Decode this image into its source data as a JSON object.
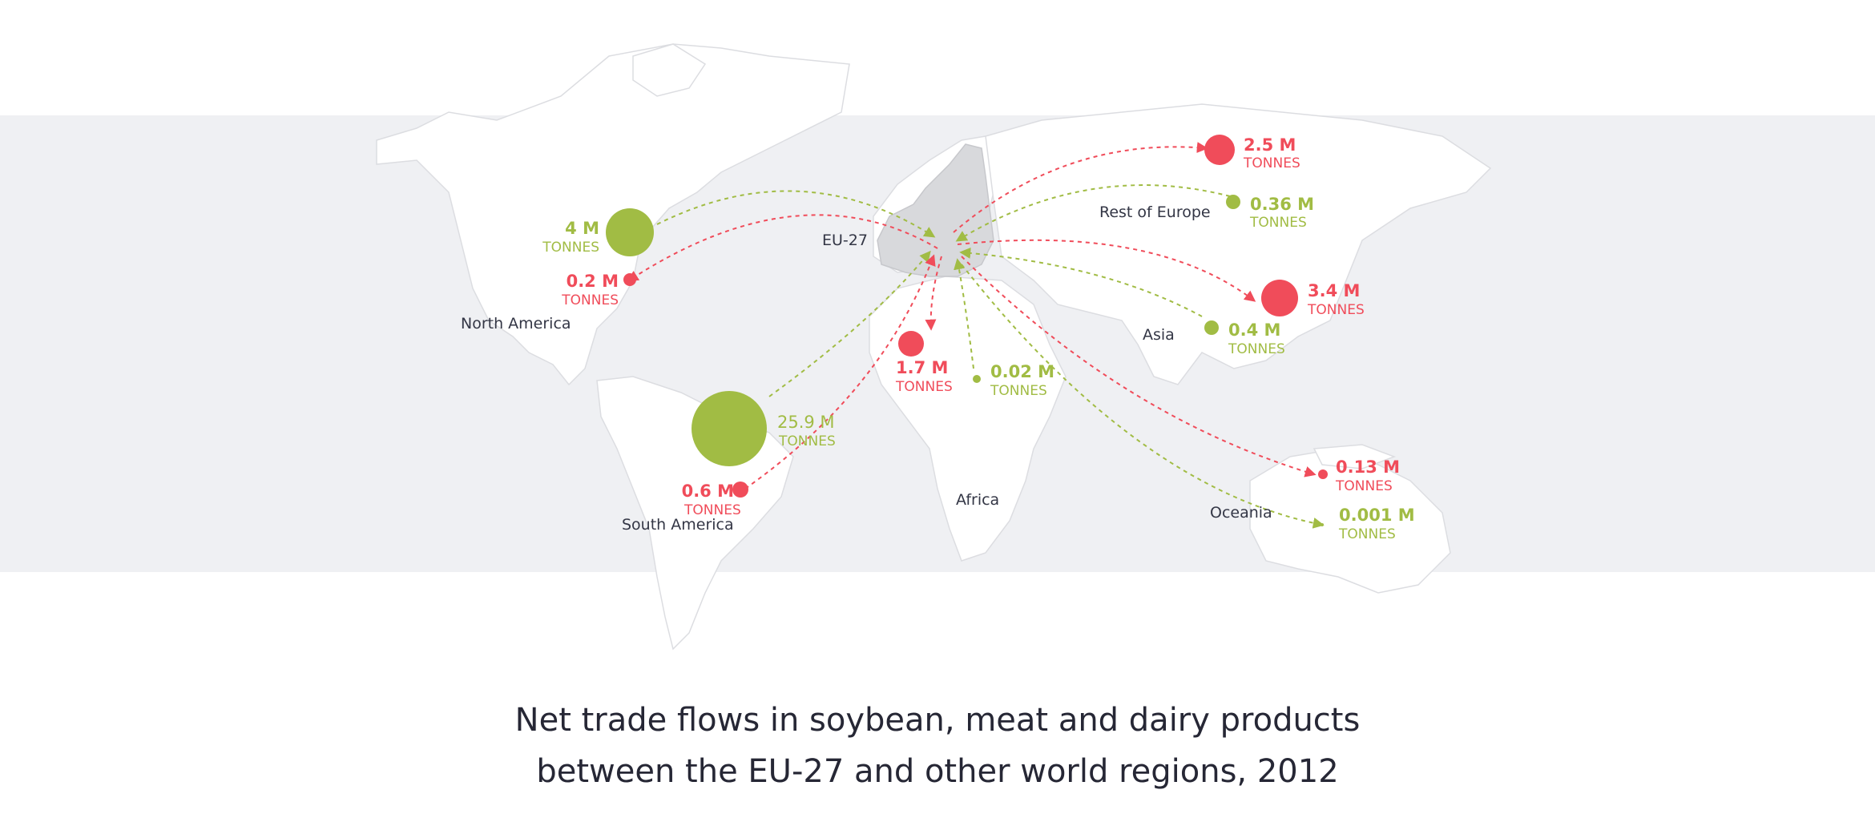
{
  "title": {
    "line1": "Net trade flows in soybean, meat and dairy products",
    "line2": "between the EU-27 and other world regions, 2012"
  },
  "colors": {
    "export": "#f04c5a",
    "import": "#a1bc44",
    "land": "#ffffff",
    "eu": "#d8d9dc",
    "band": "#eff0f3",
    "text": "#333645"
  },
  "regions": {
    "eu27": "EU-27",
    "north_america": "North America",
    "south_america": "South America",
    "africa": "Africa",
    "asia": "Asia",
    "oceania": "Oceania",
    "rest_of_europe": "Rest of Europe"
  },
  "flows": [
    {
      "id": "na-import",
      "region": "North America",
      "direction": "import",
      "value": "4 M",
      "unit": "TONNES",
      "tonnes_m": 4
    },
    {
      "id": "na-export",
      "region": "North America",
      "direction": "export",
      "value": "0.2 M",
      "unit": "TONNES",
      "tonnes_m": 0.2
    },
    {
      "id": "sa-import",
      "region": "South America",
      "direction": "import",
      "value": "25.9 M",
      "unit": "TONNES",
      "tonnes_m": 25.9
    },
    {
      "id": "sa-export",
      "region": "South America",
      "direction": "export",
      "value": "0.6 M",
      "unit": "TONNES",
      "tonnes_m": 0.6
    },
    {
      "id": "af-export",
      "region": "Africa",
      "direction": "export",
      "value": "1.7 M",
      "unit": "TONNES",
      "tonnes_m": 1.7
    },
    {
      "id": "af-import",
      "region": "Africa",
      "direction": "import",
      "value": "0.02 M",
      "unit": "TONNES",
      "tonnes_m": 0.02
    },
    {
      "id": "roe-export",
      "region": "Rest of Europe",
      "direction": "export",
      "value": "2.5 M",
      "unit": "TONNES",
      "tonnes_m": 2.5
    },
    {
      "id": "roe-import",
      "region": "Rest of Europe",
      "direction": "import",
      "value": "0.36 M",
      "unit": "TONNES",
      "tonnes_m": 0.36
    },
    {
      "id": "as-export",
      "region": "Asia",
      "direction": "export",
      "value": "3.4 M",
      "unit": "TONNES",
      "tonnes_m": 3.4
    },
    {
      "id": "as-import",
      "region": "Asia",
      "direction": "import",
      "value": "0.4 M",
      "unit": "TONNES",
      "tonnes_m": 0.4
    },
    {
      "id": "oc-export",
      "region": "Oceania",
      "direction": "export",
      "value": "0.13 M",
      "unit": "TONNES",
      "tonnes_m": 0.13
    },
    {
      "id": "oc-import",
      "region": "Oceania",
      "direction": "import",
      "value": "0.001 M",
      "unit": "TONNES",
      "tonnes_m": 0.001
    }
  ]
}
